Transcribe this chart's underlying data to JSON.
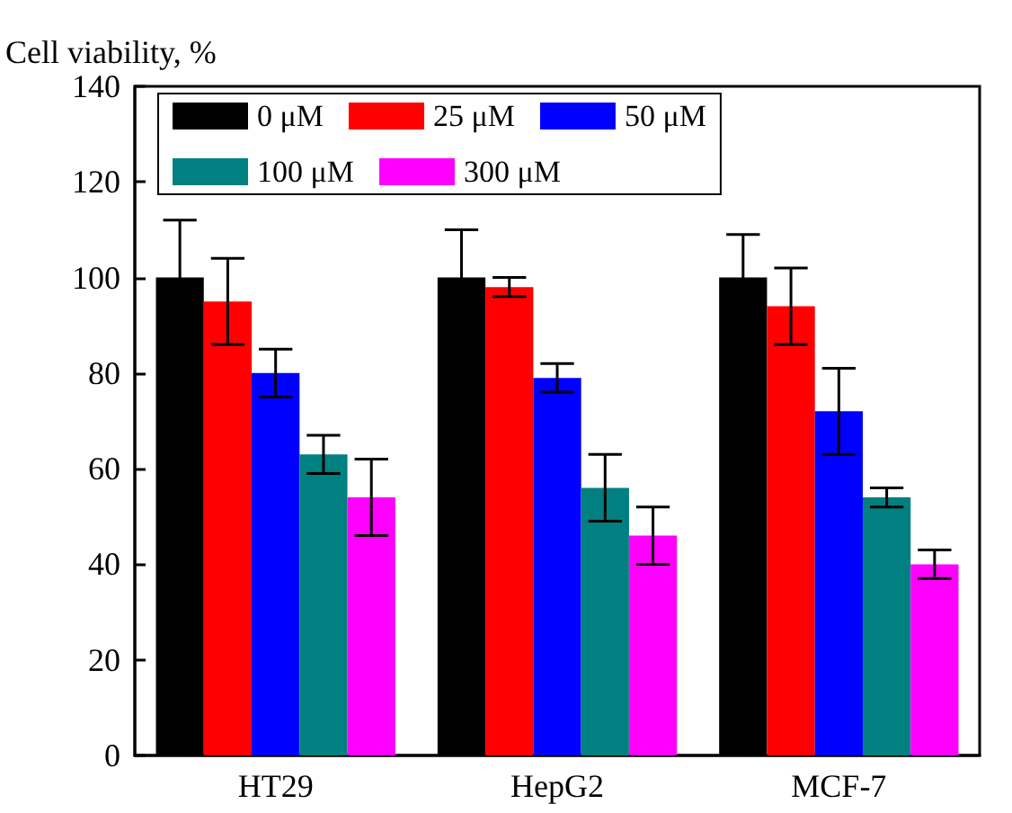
{
  "chart_data": {
    "type": "bar",
    "ylabel": "Cell viability, %",
    "categories": [
      "HT29",
      "HepG2",
      "MCF-7"
    ],
    "series": [
      {
        "name": "0 μM",
        "color": "#000000",
        "values": [
          100,
          100,
          100
        ],
        "errors": [
          12,
          10,
          9
        ]
      },
      {
        "name": "25 μM",
        "color": "#ff0000",
        "values": [
          95,
          98,
          94
        ],
        "errors": [
          9,
          2,
          8
        ]
      },
      {
        "name": "50 μM",
        "color": "#0000ff",
        "values": [
          80,
          79,
          72
        ],
        "errors": [
          5,
          3,
          9
        ]
      },
      {
        "name": "100 μM",
        "color": "#008080",
        "values": [
          63,
          56,
          54
        ],
        "errors": [
          4,
          7,
          2
        ]
      },
      {
        "name": "300 μM",
        "color": "#ff00ff",
        "values": [
          54,
          46,
          40
        ],
        "errors": [
          8,
          6,
          3
        ]
      }
    ],
    "ylim": [
      0,
      140
    ],
    "yticks": [
      0,
      20,
      40,
      60,
      80,
      100,
      120,
      140
    ],
    "grid": false,
    "legend": "top left"
  }
}
